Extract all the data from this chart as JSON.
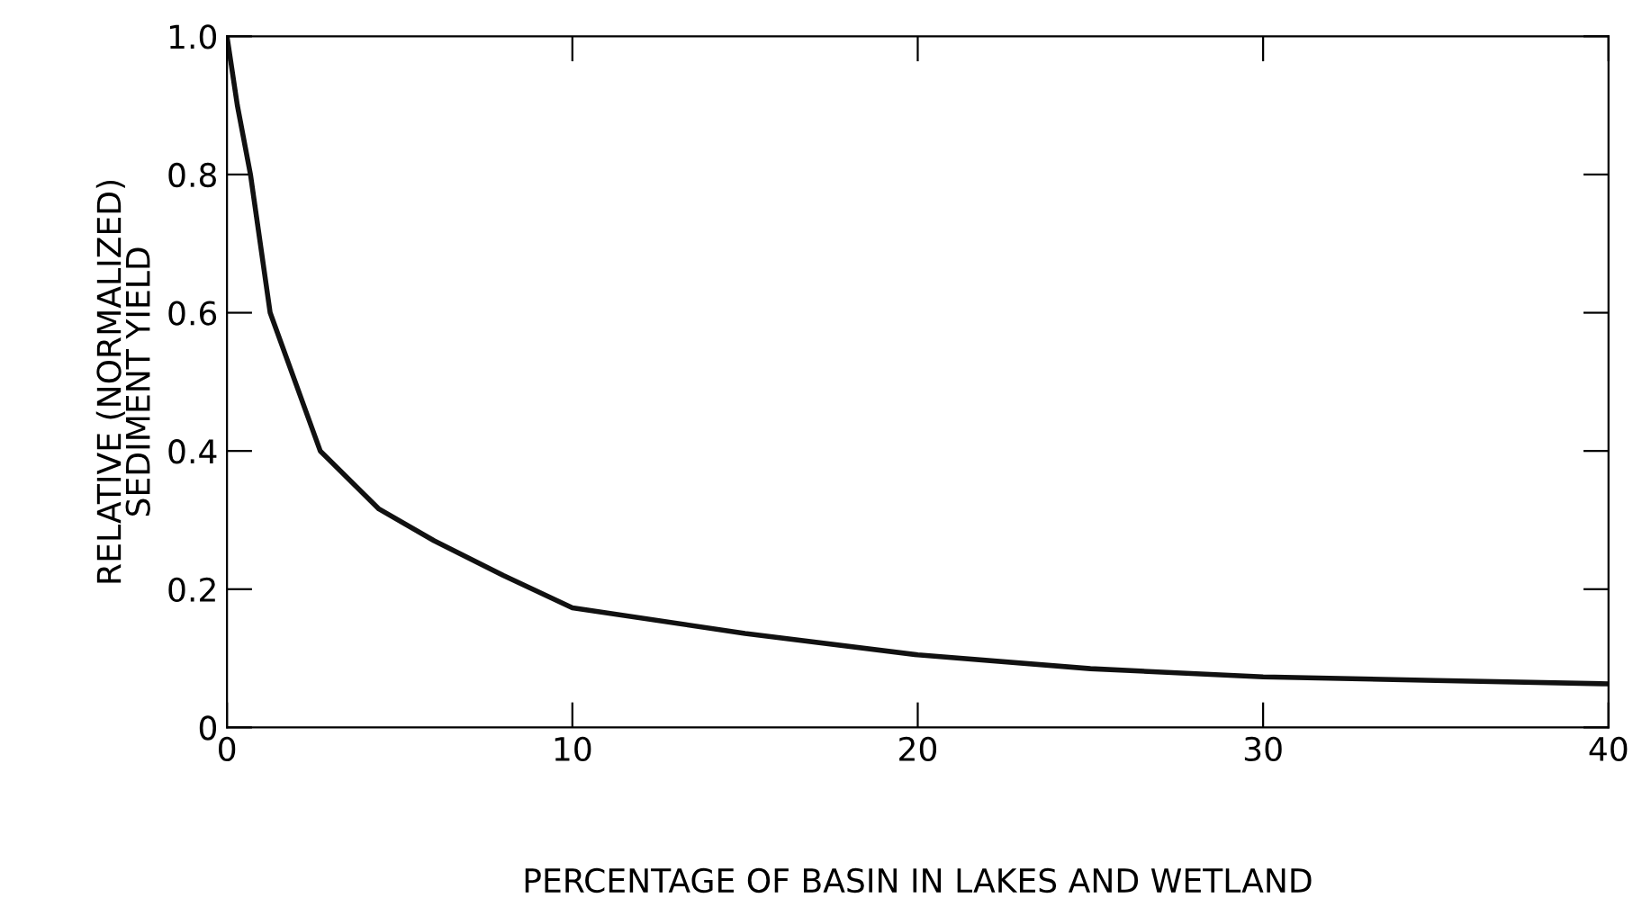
{
  "chart_data": {
    "type": "line",
    "xlabel": "PERCENTAGE OF BASIN IN LAKES AND WETLAND",
    "ylabel": "RELATIVE (NORMALIZED)\nSEDIMENT YIELD",
    "series": [
      {
        "color": "#111111",
        "x": [
          0,
          0.3,
          0.68,
          1.25,
          2.7,
          4.4,
          6,
          8,
          10,
          15,
          20,
          25,
          30,
          35,
          40
        ],
        "values": [
          1.0,
          0.9,
          0.8,
          0.6,
          0.4,
          0.316,
          0.27,
          0.22,
          0.173,
          0.136,
          0.105,
          0.085,
          0.073,
          0.068,
          0.063
        ]
      }
    ],
    "xlim": [
      0,
      40
    ],
    "ylim": [
      0,
      1.0
    ],
    "xticks": [
      0,
      10,
      20,
      30,
      40
    ],
    "yticks": [
      0,
      0.2,
      0.4,
      0.6,
      0.8,
      {
        "value": 1.0,
        "label": "1.0"
      }
    ],
    "grid": false,
    "legend": false
  }
}
